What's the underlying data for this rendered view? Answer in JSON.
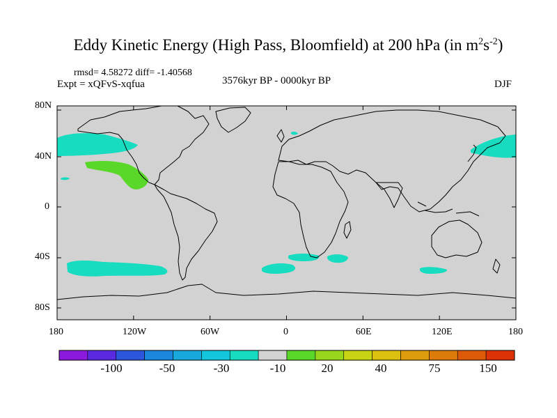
{
  "title": {
    "main": "Eddy Kinetic Energy (High Pass, Bloomfield) at 200 hPa (in m",
    "sup1": "2",
    "s": "s",
    "sup2": "-2",
    "close": ")"
  },
  "stats": {
    "rmsd": "rmsd= 4.58272 diff= -1.40568",
    "expt": "Expt = xQFvS-xqfua",
    "period": "3576kyr BP - 0000kyr BP",
    "season": "DJF"
  },
  "axes": {
    "y_labels": [
      "80N",
      "40N",
      "0",
      "40S",
      "80S"
    ],
    "x_labels": [
      "180",
      "120W",
      "60W",
      "0",
      "60E",
      "120E",
      "180"
    ]
  },
  "colorbar": {
    "colors": [
      "#8c1adc",
      "#5a2ae0",
      "#2c56dc",
      "#1a86dc",
      "#18a8dc",
      "#14c6dc",
      "#18dcc0",
      "#d2d2d2",
      "#5ad82a",
      "#98d61c",
      "#c6d414",
      "#dcc010",
      "#dc9c0c",
      "#dc7a0a",
      "#dc5a08",
      "#dc3206"
    ],
    "labels": [
      "-100",
      "-50",
      "-30",
      "-10",
      "20",
      "40",
      "75",
      "150"
    ]
  },
  "map": {
    "background_color": "#d2d2d2",
    "regions": [
      {
        "name": "north-pacific-east-cyan",
        "color": "#18dcc0"
      },
      {
        "name": "northeast-pacific-green",
        "color": "#5ad82a"
      },
      {
        "name": "north-pacific-west-cyan",
        "color": "#18dcc0"
      },
      {
        "name": "hawaii-cyan",
        "color": "#18dcc0"
      },
      {
        "name": "south-pacific-cyan",
        "color": "#18dcc0"
      },
      {
        "name": "south-atlantic-cyan",
        "color": "#18dcc0"
      },
      {
        "name": "south-indian-cyan",
        "color": "#18dcc0"
      },
      {
        "name": "south-indian-small-cyan",
        "color": "#18dcc0"
      },
      {
        "name": "southeast-indian-cyan",
        "color": "#18dcc0"
      },
      {
        "name": "north-sea-cyan",
        "color": "#18dcc0"
      }
    ]
  }
}
